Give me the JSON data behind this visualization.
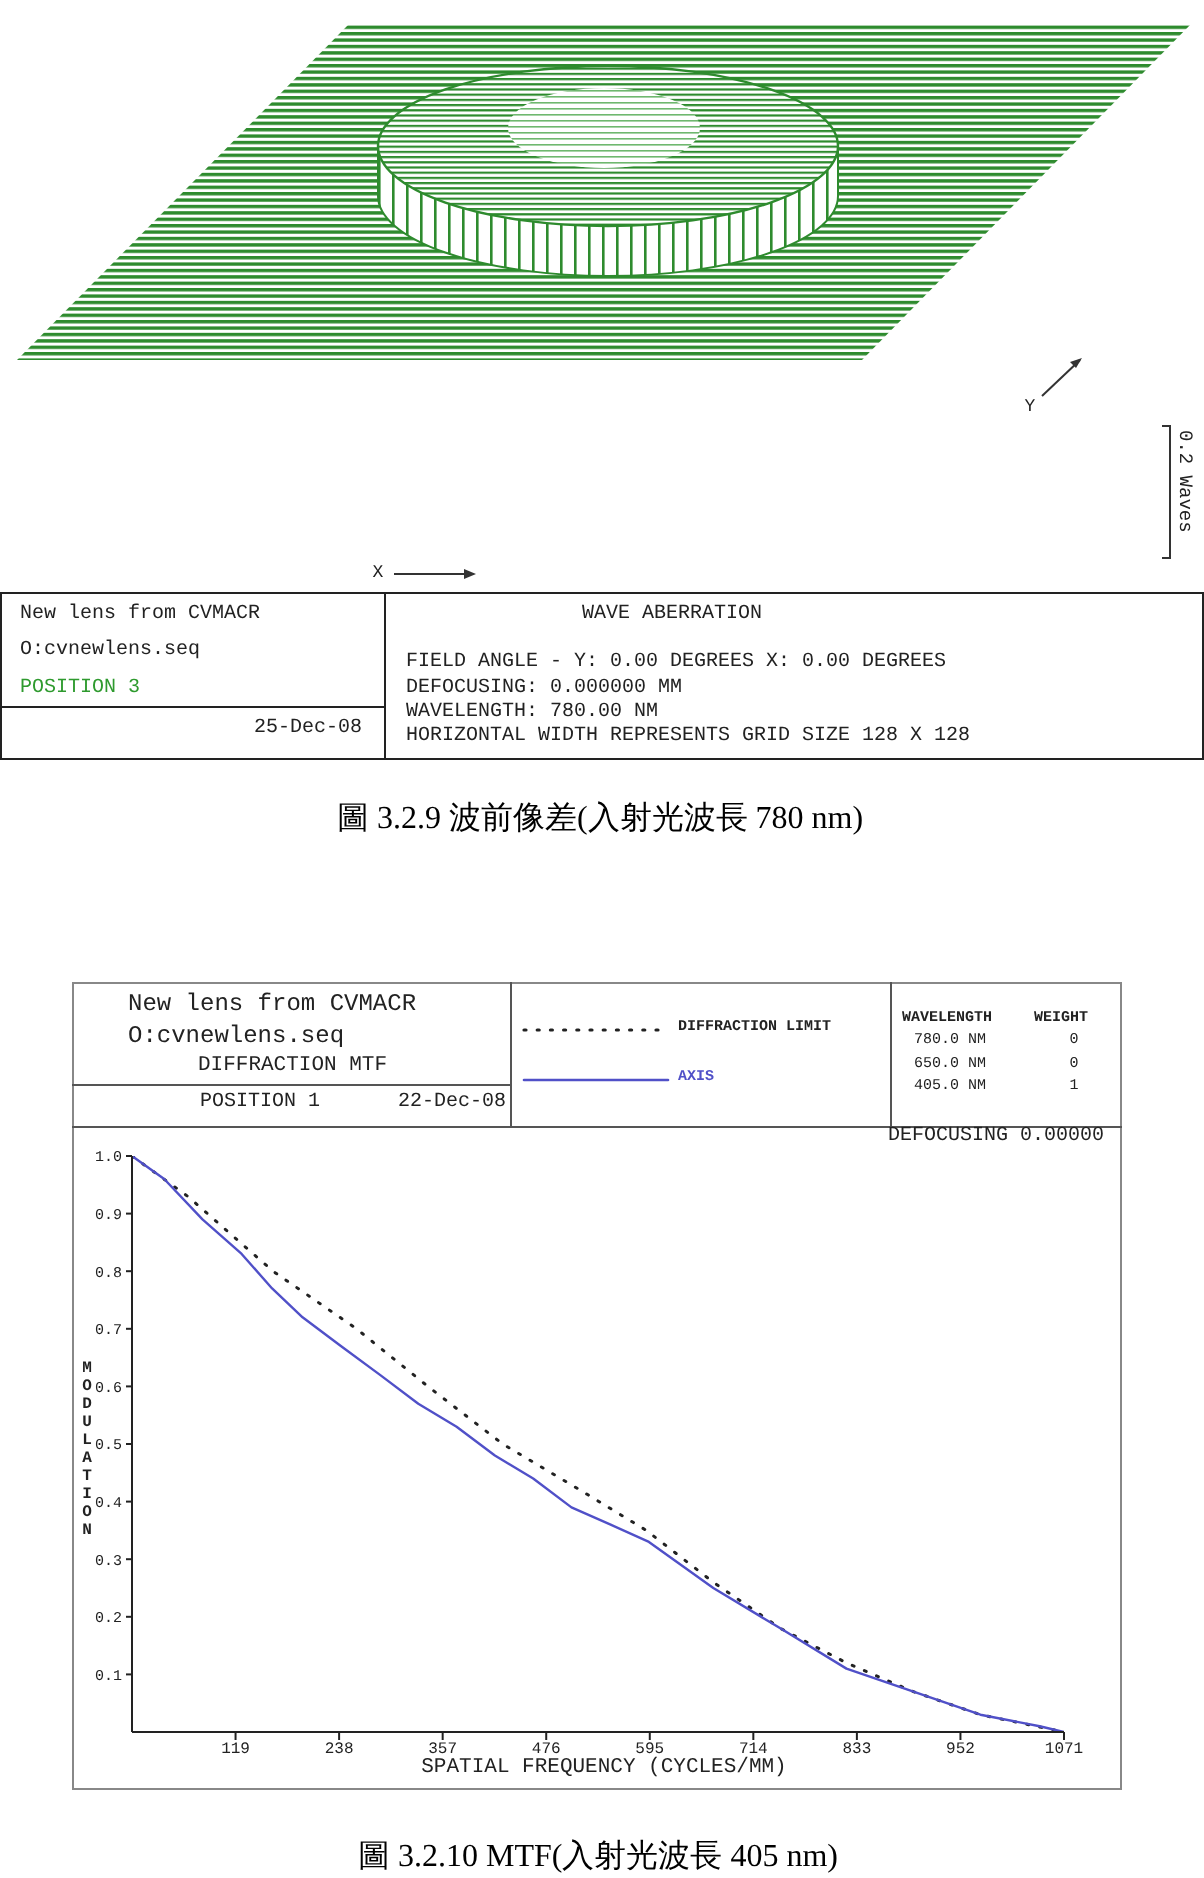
{
  "chart_data": [
    {
      "type": "other",
      "title": "WAVE ABERRATION",
      "annotations": [
        "New lens from CVMACR",
        "O:cvnewlens.seq",
        "POSITION 3",
        "25-Dec-08",
        "FIELD ANGLE - Y: 0.00 DEGREES X: 0.00 DEGREES",
        "DEFOCUSING: 0.000000 MM",
        "WAVELENGTH: 780.00 NM",
        "HORIZONTAL WIDTH REPRESENTS GRID SIZE 128 X 128",
        "X",
        "Y",
        "0.2 Waves",
        "圖 3.2.9 波前像差(入射光波長 780 nm)"
      ]
    },
    {
      "type": "line",
      "title": "DIFFRACTION MTF",
      "xlabel": "SPATIAL FREQUENCY (CYCLES/MM)",
      "ylabel": "MODULATION",
      "xlim": [
        0,
        1071
      ],
      "xticks": [
        119,
        238,
        357,
        476,
        595,
        714,
        833,
        952,
        1071
      ],
      "ylim": [
        0,
        1
      ],
      "yticks": [
        0.1,
        0.2,
        0.3,
        0.4,
        0.5,
        0.6,
        0.7,
        0.8,
        0.9,
        {
          "value": 1,
          "label": "1.0"
        }
      ],
      "legend": "top",
      "series": [
        {
          "name": "DIFFRACTION LIMIT",
          "color": "#222222",
          "line_style": "dotted",
          "x": [
            0,
            64,
            162,
            258,
            340,
            426,
            515,
            591,
            668,
            745,
            821,
            898,
            975,
            1071
          ],
          "values": [
            1.0,
            0.93,
            0.8,
            0.7,
            0.6,
            0.5,
            0.42,
            0.35,
            0.26,
            0.18,
            0.12,
            0.07,
            0.03,
            0
          ]
        },
        {
          "name": "AXIS",
          "color": "#5050c8",
          "line_style": "solid",
          "x": [
            0,
            37,
            81,
            126,
            161,
            196,
            240,
            285,
            329,
            373,
            417,
            461,
            505,
            550,
            594,
            668,
            745,
            821,
            898,
            975,
            1043,
            1071
          ],
          "values": [
            1.0,
            0.96,
            0.89,
            0.83,
            0.77,
            0.72,
            0.67,
            0.62,
            0.57,
            0.53,
            0.48,
            0.44,
            0.39,
            0.36,
            0.33,
            0.25,
            0.18,
            0.11,
            0.07,
            0.03,
            0.01,
            0
          ]
        }
      ],
      "annotations": [
        "New lens from CVMACR",
        "O:cvnewlens.seq",
        "POSITION 1",
        "22-Dec-08",
        "WAVELENGTH",
        "WEIGHT",
        "780.0 NM",
        "0",
        "650.0 NM",
        "0",
        "405.0 NM",
        "1",
        "DEFOCUSING 0.00000",
        "圖 3.2.10 MTF(入射光波長 405 nm)"
      ]
    }
  ]
}
